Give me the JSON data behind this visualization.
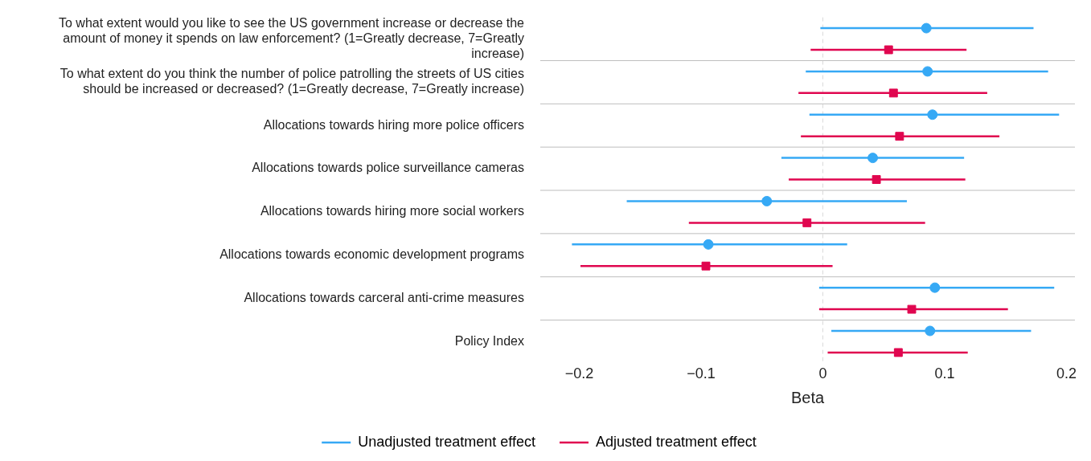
{
  "chart_data": {
    "type": "scatter",
    "orientation": "horizontal",
    "xlabel": "Beta",
    "categories": [
      "To what extent would you like to see the US government increase or decrease the amount of money it spends on law enforcement? (1=Greatly decrease, 7=Greatly increase)",
      "To what extent do you think the number of police patrolling the streets of US cities should be increased or decreased? (1=Greatly decrease, 7=Greatly increase)",
      "Allocations towards hiring more police officers",
      "Allocations towards police surveillance cameras",
      "Allocations towards hiring more social workers",
      "Allocations towards economic development programs",
      "Allocations towards carceral anti-crime measures",
      "Policy Index"
    ],
    "series": [
      {
        "name": "Unadjusted treatment effect",
        "color": "#36a9f5",
        "marker": "circle",
        "values": [
          0.085,
          0.086,
          0.09,
          0.041,
          -0.046,
          -0.094,
          0.092,
          0.088
        ],
        "errors": [
          [
            -0.002,
            0.173
          ],
          [
            -0.014,
            0.185
          ],
          [
            -0.011,
            0.194
          ],
          [
            -0.034,
            0.116
          ],
          [
            -0.161,
            0.069
          ],
          [
            -0.206,
            0.02
          ],
          [
            -0.003,
            0.19
          ],
          [
            0.007,
            0.171
          ]
        ]
      },
      {
        "name": "Adjusted treatment effect",
        "color": "#e0064f",
        "marker": "square",
        "values": [
          0.054,
          0.058,
          0.063,
          0.044,
          -0.013,
          -0.096,
          0.073,
          0.062
        ],
        "errors": [
          [
            -0.01,
            0.118
          ],
          [
            -0.02,
            0.135
          ],
          [
            -0.018,
            0.145
          ],
          [
            -0.028,
            0.117
          ],
          [
            -0.11,
            0.084
          ],
          [
            -0.199,
            0.008
          ],
          [
            -0.003,
            0.152
          ],
          [
            0.004,
            0.119
          ]
        ]
      }
    ],
    "xlim": [
      -0.232,
      0.207
    ],
    "xticks": [
      {
        "value": -0.2,
        "label": "−0.2"
      },
      {
        "value": -0.1,
        "label": "−0.1"
      },
      0,
      0.1,
      0.2
    ],
    "ref_lines": [
      {
        "axis": "x",
        "value": 0,
        "color": "#d9d9d9",
        "line_style": "dashed"
      }
    ],
    "grid": "y",
    "legend": "bottom"
  }
}
